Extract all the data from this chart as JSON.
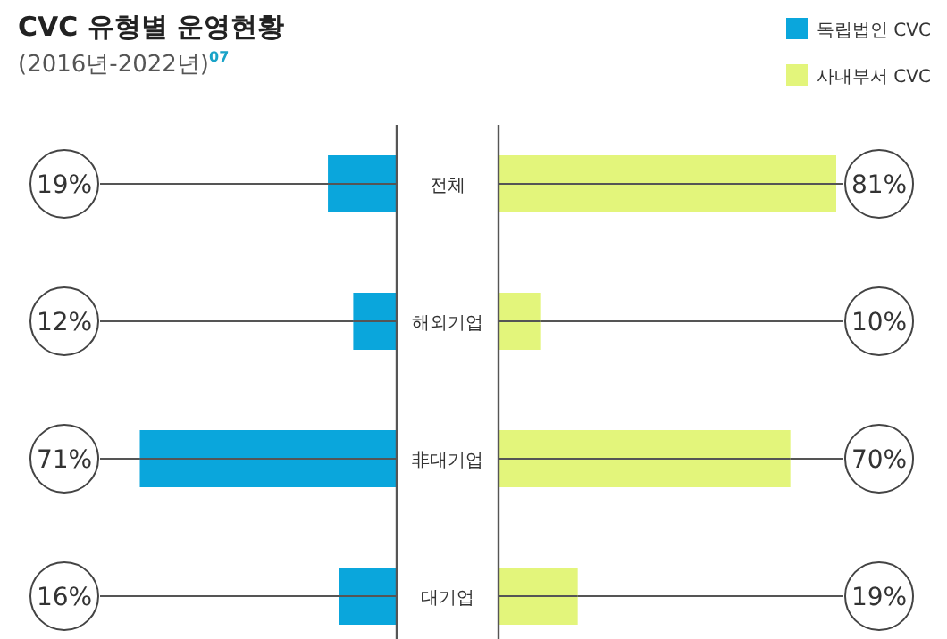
{
  "chart_data": [
    {
      "type": "bar",
      "orientation": "horizontal",
      "title": "CVC 유형별 운영현황",
      "subtitle": "(2016년-2022년)$^{07}$",
      "legend": "top right",
      "grid": "y",
      "categories": [
        "전체",
        "해외기업",
        "非대기업",
        "대기업"
      ],
      "series": [
        {
          "name": "독립법인 CVC",
          "color": "#0aa6dc",
          "values": [
            19,
            12,
            71,
            16
          ],
          "value_labels": [
            "19%",
            "12%",
            "71%",
            "16%"
          ]
        }
      ]
    },
    {
      "type": "bar",
      "orientation": "horizontal",
      "legend": "top right",
      "grid": "y",
      "series": [
        {
          "name": "사내부서 CVC",
          "color": "#e3f57b",
          "values": [
            81,
            10,
            70,
            19
          ],
          "value_labels": [
            "81%",
            "10%",
            "70%",
            "19%"
          ]
        }
      ]
    }
  ]
}
